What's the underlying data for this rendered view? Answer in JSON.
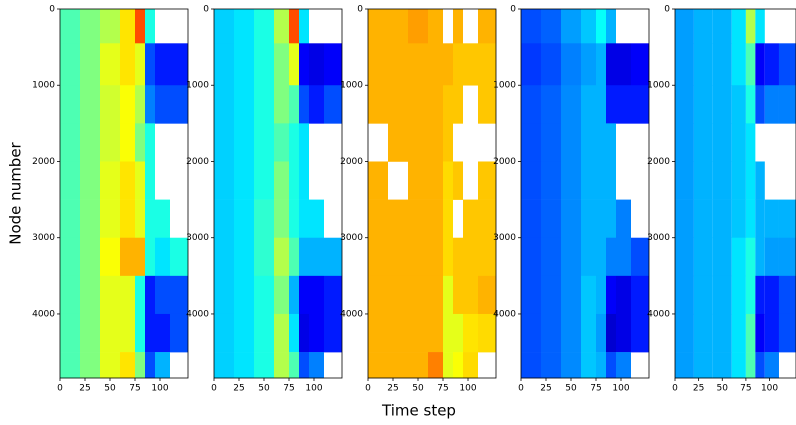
{
  "chart_data": [
    {
      "type": "heatmap",
      "ylabel": "Node number",
      "colormap": "jet",
      "zlim": [
        0,
        1
      ],
      "xlim": [
        0,
        128
      ],
      "ylim": [
        0,
        4840
      ],
      "y_inverted": true,
      "xticks": [
        0,
        25,
        50,
        75,
        100
      ],
      "yticks": [
        0,
        1000,
        2000,
        3000,
        4000
      ],
      "x_bins": [
        0,
        20,
        40,
        60,
        75,
        85,
        95,
        110,
        128
      ],
      "y_bins": [
        0,
        450,
        1000,
        1500,
        2000,
        2500,
        3000,
        3500,
        4000,
        4500,
        4840
      ],
      "z": [
        [
          0.45,
          0.5,
          0.55,
          0.65,
          0.8,
          0.4,
          null,
          null
        ],
        [
          0.45,
          0.5,
          0.6,
          0.65,
          0.6,
          0.2,
          0.15,
          0.15
        ],
        [
          0.45,
          0.5,
          0.58,
          0.62,
          0.55,
          0.25,
          0.2,
          0.2
        ],
        [
          0.45,
          0.5,
          0.58,
          0.62,
          0.5,
          0.4,
          null,
          null
        ],
        [
          0.45,
          0.5,
          0.6,
          0.65,
          0.6,
          0.4,
          null,
          null
        ],
        [
          0.45,
          0.5,
          0.6,
          0.65,
          0.6,
          0.4,
          0.4,
          null
        ],
        [
          0.45,
          0.5,
          0.62,
          0.7,
          0.7,
          0.4,
          0.35,
          0.4
        ],
        [
          0.45,
          0.5,
          0.6,
          0.6,
          0.4,
          0.15,
          0.2,
          0.2
        ],
        [
          0.45,
          0.5,
          0.6,
          0.6,
          0.4,
          0.15,
          0.15,
          0.2
        ],
        [
          0.45,
          0.5,
          0.6,
          0.65,
          0.5,
          0.2,
          0.3,
          null
        ]
      ]
    },
    {
      "type": "heatmap",
      "colormap": "jet",
      "zlim": [
        0,
        1
      ],
      "xlim": [
        0,
        128
      ],
      "ylim": [
        0,
        4840
      ],
      "y_inverted": true,
      "xticks": [
        0,
        25,
        50,
        75,
        100
      ],
      "yticks": [
        0,
        1000,
        2000,
        3000,
        4000
      ],
      "x_bins": [
        0,
        20,
        40,
        60,
        75,
        85,
        95,
        110,
        128
      ],
      "y_bins": [
        0,
        450,
        1000,
        1500,
        2000,
        2500,
        3000,
        3500,
        4000,
        4500,
        4840
      ],
      "z": [
        [
          0.33,
          0.35,
          0.4,
          0.55,
          0.8,
          0.35,
          null,
          null
        ],
        [
          0.33,
          0.35,
          0.4,
          0.5,
          0.6,
          0.12,
          0.1,
          0.12
        ],
        [
          0.33,
          0.35,
          0.4,
          0.5,
          0.45,
          0.2,
          0.15,
          0.2
        ],
        [
          0.33,
          0.35,
          0.4,
          0.45,
          0.4,
          0.35,
          null,
          null
        ],
        [
          0.33,
          0.35,
          0.4,
          0.5,
          0.4,
          0.35,
          null,
          null
        ],
        [
          0.33,
          0.35,
          0.42,
          0.5,
          0.4,
          0.35,
          0.35,
          null
        ],
        [
          0.33,
          0.35,
          0.42,
          0.55,
          0.45,
          0.3,
          0.3,
          0.3
        ],
        [
          0.33,
          0.35,
          0.4,
          0.5,
          0.3,
          0.12,
          0.12,
          0.15
        ],
        [
          0.33,
          0.35,
          0.4,
          0.55,
          0.35,
          0.1,
          0.12,
          0.15
        ],
        [
          0.33,
          0.35,
          0.4,
          0.55,
          0.45,
          0.2,
          0.25,
          null
        ]
      ]
    },
    {
      "type": "heatmap",
      "xlabel": "Time step",
      "colormap": "jet",
      "zlim": [
        0,
        1
      ],
      "xlim": [
        0,
        128
      ],
      "ylim": [
        0,
        4840
      ],
      "y_inverted": true,
      "xticks": [
        0,
        25,
        50,
        75,
        100
      ],
      "yticks": [
        0,
        1000,
        2000,
        3000,
        4000
      ],
      "x_bins": [
        0,
        20,
        40,
        60,
        75,
        85,
        95,
        110,
        128
      ],
      "y_bins": [
        0,
        450,
        1000,
        1500,
        2000,
        2500,
        3000,
        3500,
        4000,
        4500,
        4840
      ],
      "z": [
        [
          0.7,
          0.7,
          0.72,
          0.7,
          null,
          0.7,
          null,
          0.7
        ],
        [
          0.7,
          0.7,
          0.7,
          0.7,
          0.7,
          0.68,
          0.68,
          0.68
        ],
        [
          0.7,
          0.7,
          0.7,
          0.7,
          0.68,
          0.68,
          null,
          0.68
        ],
        [
          null,
          0.7,
          0.7,
          0.7,
          0.68,
          null,
          null,
          null
        ],
        [
          0.7,
          null,
          0.7,
          0.7,
          0.66,
          0.68,
          null,
          0.68
        ],
        [
          0.7,
          0.7,
          0.7,
          0.7,
          0.66,
          null,
          0.68,
          0.68
        ],
        [
          0.7,
          0.7,
          0.7,
          0.7,
          0.66,
          0.68,
          0.68,
          0.68
        ],
        [
          0.7,
          0.7,
          0.7,
          0.7,
          0.6,
          0.68,
          0.68,
          0.7
        ],
        [
          0.7,
          0.7,
          0.7,
          0.7,
          0.6,
          0.6,
          0.65,
          0.66
        ],
        [
          0.7,
          0.7,
          0.7,
          0.75,
          0.6,
          0.62,
          0.66,
          null
        ]
      ]
    },
    {
      "type": "heatmap",
      "colormap": "jet",
      "zlim": [
        0,
        1
      ],
      "xlim": [
        0,
        128
      ],
      "ylim": [
        0,
        4840
      ],
      "y_inverted": true,
      "xticks": [
        0,
        25,
        50,
        75,
        100
      ],
      "yticks": [
        0,
        1000,
        2000,
        3000,
        4000
      ],
      "x_bins": [
        0,
        20,
        40,
        60,
        75,
        85,
        95,
        110,
        128
      ],
      "y_bins": [
        0,
        450,
        1000,
        1500,
        2000,
        2500,
        3000,
        3500,
        4000,
        4500,
        4840
      ],
      "z": [
        [
          0.2,
          0.22,
          0.28,
          0.32,
          0.38,
          0.3,
          null,
          null
        ],
        [
          0.18,
          0.2,
          0.25,
          0.28,
          0.3,
          0.1,
          0.1,
          0.12
        ],
        [
          0.2,
          0.22,
          0.26,
          0.3,
          0.3,
          0.15,
          0.15,
          0.15
        ],
        [
          0.2,
          0.22,
          0.26,
          0.3,
          0.3,
          0.3,
          null,
          null
        ],
        [
          0.2,
          0.22,
          0.26,
          0.3,
          0.3,
          0.3,
          null,
          null
        ],
        [
          0.2,
          0.22,
          0.26,
          0.3,
          0.3,
          0.3,
          0.25,
          null
        ],
        [
          0.2,
          0.22,
          0.26,
          0.3,
          0.3,
          0.25,
          0.25,
          0.2
        ],
        [
          0.2,
          0.22,
          0.26,
          0.32,
          0.3,
          0.12,
          0.1,
          0.15
        ],
        [
          0.2,
          0.22,
          0.26,
          0.32,
          0.28,
          0.08,
          0.1,
          0.15
        ],
        [
          0.2,
          0.22,
          0.26,
          0.32,
          0.3,
          0.2,
          0.25,
          null
        ]
      ]
    },
    {
      "type": "heatmap",
      "colormap": "jet",
      "zlim": [
        0,
        1
      ],
      "xlim": [
        0,
        128
      ],
      "ylim": [
        0,
        4840
      ],
      "y_inverted": true,
      "xticks": [
        0,
        25,
        50,
        75,
        100
      ],
      "yticks": [
        0,
        1000,
        2000,
        3000,
        4000
      ],
      "x_bins": [
        0,
        20,
        40,
        60,
        75,
        85,
        95,
        110,
        128
      ],
      "y_bins": [
        0,
        450,
        1000,
        1500,
        2000,
        2500,
        3000,
        3500,
        4000,
        4500,
        4840
      ],
      "z": [
        [
          0.28,
          0.3,
          0.3,
          0.35,
          0.55,
          0.35,
          null,
          null
        ],
        [
          0.28,
          0.3,
          0.3,
          0.35,
          0.45,
          0.12,
          0.15,
          0.2
        ],
        [
          0.28,
          0.3,
          0.3,
          0.32,
          0.4,
          0.2,
          0.25,
          0.25
        ],
        [
          0.28,
          0.3,
          0.3,
          0.32,
          0.35,
          null,
          null,
          null
        ],
        [
          0.28,
          0.3,
          0.3,
          0.32,
          0.35,
          0.3,
          null,
          null
        ],
        [
          0.28,
          0.3,
          0.3,
          0.32,
          0.35,
          0.3,
          0.3,
          0.3
        ],
        [
          0.28,
          0.3,
          0.3,
          0.35,
          0.4,
          0.3,
          0.28,
          0.28
        ],
        [
          0.28,
          0.3,
          0.3,
          0.35,
          0.4,
          0.15,
          0.15,
          0.2
        ],
        [
          0.28,
          0.3,
          0.3,
          0.35,
          0.45,
          0.12,
          0.15,
          0.2
        ],
        [
          0.28,
          0.3,
          0.3,
          0.35,
          0.45,
          0.2,
          0.25,
          null
        ]
      ]
    }
  ]
}
